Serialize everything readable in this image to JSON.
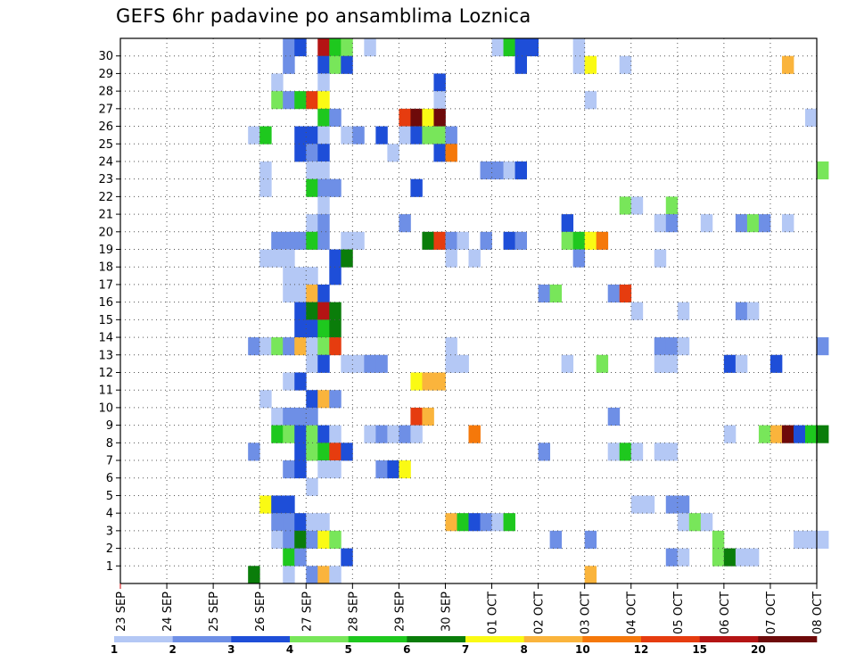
{
  "chart_data": {
    "type": "heatmap",
    "title": "GEFS 6hr padavine po ansamblima Loznica",
    "y_ticks": [
      "1",
      "2",
      "3",
      "4",
      "5",
      "6",
      "7",
      "8",
      "9",
      "10",
      "11",
      "12",
      "13",
      "14",
      "15",
      "16",
      "17",
      "18",
      "19",
      "20",
      "21",
      "22",
      "23",
      "24",
      "25",
      "26",
      "27",
      "28",
      "29",
      "30"
    ],
    "x_ticks": [
      "23 SEP",
      "24 SEP",
      "25 SEP",
      "26 SEP",
      "27 SEP",
      "28 SEP",
      "29 SEP",
      "30 SEP",
      "01 OCT",
      "02 OCT",
      "03 OCT",
      "04 OCT",
      "05 OCT",
      "06 OCT",
      "07 OCT",
      "08 OCT"
    ],
    "x_slots_per_day": 4,
    "ylim": [
      1,
      30
    ],
    "grid": true,
    "color_bins": [
      {
        "label": "1",
        "color": "#b4c8f5"
      },
      {
        "label": "2",
        "color": "#6e8fe6"
      },
      {
        "label": "3",
        "color": "#1e4ed8"
      },
      {
        "label": "4",
        "color": "#78e65a"
      },
      {
        "label": "5",
        "color": "#1ec81e"
      },
      {
        "label": "6",
        "color": "#0a7d0a"
      },
      {
        "label": "7",
        "color": "#fafa14"
      },
      {
        "label": "8",
        "color": "#fab43c"
      },
      {
        "label": "10",
        "color": "#f5780a"
      },
      {
        "label": "12",
        "color": "#e63c0f"
      },
      {
        "label": "15",
        "color": "#b41414"
      },
      {
        "label": "20",
        "color": "#6e0a0a"
      }
    ],
    "cells": [
      [
        30,
        14,
        1
      ],
      [
        30,
        15,
        2
      ],
      [
        30,
        17,
        10
      ],
      [
        30,
        18,
        4
      ],
      [
        30,
        19,
        3
      ],
      [
        30,
        21,
        0
      ],
      [
        30,
        32,
        0
      ],
      [
        30,
        33,
        4
      ],
      [
        30,
        34,
        2
      ],
      [
        30,
        35,
        2
      ],
      [
        30,
        39,
        0
      ],
      [
        29,
        14,
        1
      ],
      [
        29,
        17,
        2
      ],
      [
        29,
        18,
        3
      ],
      [
        29,
        19,
        2
      ],
      [
        29,
        34,
        2
      ],
      [
        29,
        39,
        0
      ],
      [
        29,
        40,
        6
      ],
      [
        29,
        43,
        0
      ],
      [
        29,
        57,
        7
      ],
      [
        28,
        13,
        0
      ],
      [
        28,
        17,
        0
      ],
      [
        28,
        27,
        2
      ],
      [
        27,
        13,
        3
      ],
      [
        27,
        14,
        1
      ],
      [
        27,
        15,
        4
      ],
      [
        27,
        16,
        9
      ],
      [
        27,
        17,
        6
      ],
      [
        27,
        27,
        0
      ],
      [
        27,
        40,
        0
      ],
      [
        26,
        17,
        4
      ],
      [
        26,
        18,
        1
      ],
      [
        26,
        24,
        9
      ],
      [
        26,
        25,
        11
      ],
      [
        26,
        26,
        6
      ],
      [
        26,
        27,
        11
      ],
      [
        26,
        59,
        0
      ],
      [
        25,
        11,
        0
      ],
      [
        25,
        12,
        4
      ],
      [
        25,
        15,
        2
      ],
      [
        25,
        16,
        2
      ],
      [
        25,
        17,
        0
      ],
      [
        25,
        19,
        0
      ],
      [
        25,
        20,
        1
      ],
      [
        25,
        22,
        2
      ],
      [
        25,
        24,
        0
      ],
      [
        25,
        25,
        2
      ],
      [
        25,
        26,
        3
      ],
      [
        25,
        27,
        3
      ],
      [
        25,
        28,
        1
      ],
      [
        24,
        15,
        2
      ],
      [
        24,
        16,
        1
      ],
      [
        24,
        17,
        2
      ],
      [
        24,
        23,
        0
      ],
      [
        24,
        27,
        2
      ],
      [
        24,
        28,
        8
      ],
      [
        23,
        12,
        0
      ],
      [
        23,
        16,
        0
      ],
      [
        23,
        17,
        0
      ],
      [
        23,
        31,
        1
      ],
      [
        23,
        32,
        1
      ],
      [
        23,
        33,
        0
      ],
      [
        23,
        34,
        2
      ],
      [
        23,
        60,
        3
      ],
      [
        22,
        12,
        0
      ],
      [
        22,
        16,
        4
      ],
      [
        22,
        17,
        1
      ],
      [
        22,
        18,
        1
      ],
      [
        22,
        25,
        2
      ],
      [
        21,
        17,
        0
      ],
      [
        21,
        43,
        3
      ],
      [
        21,
        44,
        0
      ],
      [
        21,
        47,
        3
      ],
      [
        20,
        16,
        0
      ],
      [
        20,
        17,
        1
      ],
      [
        20,
        24,
        1
      ],
      [
        20,
        38,
        2
      ],
      [
        20,
        46,
        0
      ],
      [
        20,
        47,
        1
      ],
      [
        20,
        50,
        0
      ],
      [
        20,
        53,
        1
      ],
      [
        20,
        54,
        3
      ],
      [
        20,
        55,
        1
      ],
      [
        20,
        57,
        0
      ],
      [
        19,
        13,
        1
      ],
      [
        19,
        14,
        1
      ],
      [
        19,
        15,
        1
      ],
      [
        19,
        16,
        4
      ],
      [
        19,
        17,
        1
      ],
      [
        19,
        19,
        0
      ],
      [
        19,
        20,
        0
      ],
      [
        19,
        26,
        5
      ],
      [
        19,
        27,
        9
      ],
      [
        19,
        28,
        1
      ],
      [
        19,
        29,
        0
      ],
      [
        19,
        31,
        1
      ],
      [
        19,
        33,
        2
      ],
      [
        19,
        34,
        1
      ],
      [
        19,
        38,
        3
      ],
      [
        19,
        39,
        4
      ],
      [
        19,
        40,
        6
      ],
      [
        19,
        41,
        8
      ],
      [
        18,
        12,
        0
      ],
      [
        18,
        13,
        0
      ],
      [
        18,
        14,
        0
      ],
      [
        18,
        18,
        2
      ],
      [
        18,
        19,
        5
      ],
      [
        18,
        28,
        0
      ],
      [
        18,
        30,
        0
      ],
      [
        18,
        39,
        1
      ],
      [
        18,
        46,
        0
      ],
      [
        17,
        14,
        0
      ],
      [
        17,
        15,
        0
      ],
      [
        17,
        16,
        0
      ],
      [
        17,
        18,
        2
      ],
      [
        16,
        14,
        0
      ],
      [
        16,
        15,
        0
      ],
      [
        16,
        16,
        7
      ],
      [
        16,
        17,
        2
      ],
      [
        16,
        36,
        1
      ],
      [
        16,
        37,
        3
      ],
      [
        16,
        42,
        1
      ],
      [
        16,
        43,
        9
      ],
      [
        15,
        15,
        2
      ],
      [
        15,
        16,
        5
      ],
      [
        15,
        17,
        10
      ],
      [
        15,
        18,
        5
      ],
      [
        15,
        44,
        0
      ],
      [
        15,
        48,
        0
      ],
      [
        15,
        53,
        1
      ],
      [
        15,
        54,
        0
      ],
      [
        14,
        15,
        2
      ],
      [
        14,
        16,
        2
      ],
      [
        14,
        17,
        4
      ],
      [
        14,
        18,
        5
      ],
      [
        13,
        11,
        1
      ],
      [
        13,
        12,
        0
      ],
      [
        13,
        13,
        3
      ],
      [
        13,
        14,
        1
      ],
      [
        13,
        15,
        7
      ],
      [
        13,
        16,
        0
      ],
      [
        13,
        17,
        3
      ],
      [
        13,
        18,
        9
      ],
      [
        13,
        28,
        0
      ],
      [
        13,
        46,
        1
      ],
      [
        13,
        47,
        1
      ],
      [
        13,
        48,
        0
      ],
      [
        13,
        60,
        1
      ],
      [
        12,
        16,
        0
      ],
      [
        12,
        17,
        2
      ],
      [
        12,
        19,
        0
      ],
      [
        12,
        20,
        0
      ],
      [
        12,
        21,
        1
      ],
      [
        12,
        22,
        1
      ],
      [
        12,
        28,
        0
      ],
      [
        12,
        29,
        0
      ],
      [
        12,
        38,
        0
      ],
      [
        12,
        41,
        3
      ],
      [
        12,
        46,
        0
      ],
      [
        12,
        47,
        0
      ],
      [
        12,
        52,
        2
      ],
      [
        12,
        53,
        0
      ],
      [
        12,
        56,
        2
      ],
      [
        11,
        14,
        0
      ],
      [
        11,
        15,
        2
      ],
      [
        11,
        25,
        6
      ],
      [
        11,
        26,
        7
      ],
      [
        11,
        27,
        7
      ],
      [
        10,
        12,
        0
      ],
      [
        10,
        16,
        2
      ],
      [
        10,
        17,
        7
      ],
      [
        10,
        18,
        1
      ],
      [
        9,
        13,
        0
      ],
      [
        9,
        14,
        1
      ],
      [
        9,
        15,
        1
      ],
      [
        9,
        16,
        1
      ],
      [
        9,
        25,
        9
      ],
      [
        9,
        26,
        7
      ],
      [
        9,
        42,
        1
      ],
      [
        8,
        13,
        4
      ],
      [
        8,
        14,
        3
      ],
      [
        8,
        15,
        2
      ],
      [
        8,
        16,
        3
      ],
      [
        8,
        17,
        2
      ],
      [
        8,
        18,
        0
      ],
      [
        8,
        21,
        0
      ],
      [
        8,
        22,
        1
      ],
      [
        8,
        23,
        0
      ],
      [
        8,
        24,
        1
      ],
      [
        8,
        25,
        0
      ],
      [
        8,
        30,
        8
      ],
      [
        8,
        52,
        0
      ],
      [
        8,
        55,
        3
      ],
      [
        8,
        56,
        7
      ],
      [
        8,
        57,
        11
      ],
      [
        8,
        58,
        2
      ],
      [
        8,
        59,
        4
      ],
      [
        8,
        60,
        5
      ],
      [
        7,
        11,
        1
      ],
      [
        7,
        15,
        2
      ],
      [
        7,
        16,
        3
      ],
      [
        7,
        17,
        4
      ],
      [
        7,
        18,
        9
      ],
      [
        7,
        19,
        2
      ],
      [
        7,
        36,
        1
      ],
      [
        7,
        42,
        0
      ],
      [
        7,
        43,
        4
      ],
      [
        7,
        44,
        0
      ],
      [
        7,
        46,
        0
      ],
      [
        7,
        47,
        0
      ],
      [
        6,
        14,
        1
      ],
      [
        6,
        15,
        2
      ],
      [
        6,
        17,
        0
      ],
      [
        6,
        18,
        0
      ],
      [
        6,
        22,
        1
      ],
      [
        6,
        23,
        2
      ],
      [
        6,
        24,
        6
      ],
      [
        5,
        16,
        0
      ],
      [
        4,
        12,
        6
      ],
      [
        4,
        13,
        2
      ],
      [
        4,
        14,
        2
      ],
      [
        4,
        44,
        0
      ],
      [
        4,
        45,
        0
      ],
      [
        4,
        47,
        1
      ],
      [
        4,
        48,
        1
      ],
      [
        3,
        13,
        1
      ],
      [
        3,
        14,
        1
      ],
      [
        3,
        15,
        2
      ],
      [
        3,
        16,
        0
      ],
      [
        3,
        17,
        0
      ],
      [
        3,
        28,
        7
      ],
      [
        3,
        29,
        4
      ],
      [
        3,
        30,
        2
      ],
      [
        3,
        31,
        1
      ],
      [
        3,
        32,
        0
      ],
      [
        3,
        33,
        4
      ],
      [
        3,
        48,
        0
      ],
      [
        3,
        49,
        3
      ],
      [
        3,
        50,
        0
      ],
      [
        2,
        13,
        0
      ],
      [
        2,
        14,
        1
      ],
      [
        2,
        15,
        5
      ],
      [
        2,
        16,
        1
      ],
      [
        2,
        17,
        6
      ],
      [
        2,
        18,
        3
      ],
      [
        2,
        37,
        1
      ],
      [
        2,
        40,
        1
      ],
      [
        2,
        51,
        3
      ],
      [
        2,
        58,
        0
      ],
      [
        2,
        59,
        0
      ],
      [
        2,
        60,
        0
      ],
      [
        1,
        14,
        4
      ],
      [
        1,
        15,
        1
      ],
      [
        1,
        19,
        2
      ],
      [
        1,
        47,
        1
      ],
      [
        1,
        48,
        0
      ],
      [
        1,
        51,
        3
      ],
      [
        1,
        52,
        5
      ],
      [
        1,
        53,
        0
      ],
      [
        1,
        54,
        0
      ],
      [
        0,
        11,
        5
      ],
      [
        0,
        14,
        0
      ],
      [
        0,
        16,
        1
      ],
      [
        0,
        17,
        7
      ],
      [
        0,
        18,
        0
      ],
      [
        0,
        40,
        7
      ]
    ]
  }
}
